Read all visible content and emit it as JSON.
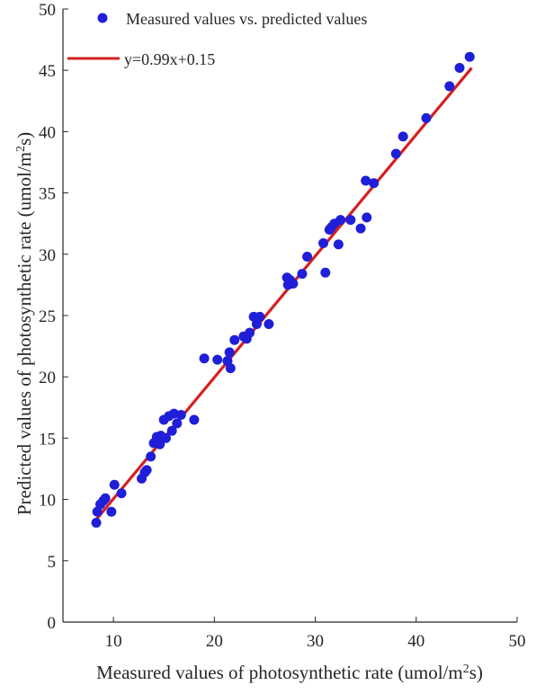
{
  "chart_data": {
    "type": "scatter",
    "xlim": [
      5,
      50
    ],
    "ylim": [
      0,
      50
    ],
    "x_ticks": [
      10,
      20,
      30,
      40,
      50
    ],
    "y_ticks": [
      0,
      5,
      10,
      15,
      20,
      25,
      30,
      35,
      40,
      45,
      50
    ],
    "xlabel_main": "Measured values of  photosynthetic rate (umol/m",
    "xlabel_sup": "2",
    "xlabel_end": "s)",
    "ylabel_main": "Predicted values of  photosynthetic rate (umol/m",
    "ylabel_sup": "2",
    "ylabel_end": "s)",
    "grid": false,
    "legend_placement": "top-left",
    "colors": {
      "points": "#1f1fd8",
      "fit_line": "#d42020",
      "axis": "#262626"
    },
    "series": [
      {
        "name": "Measured values vs. predicted values",
        "kind": "scatter",
        "x": [
          8.3,
          8.4,
          8.7,
          9.0,
          9.2,
          9.8,
          10.1,
          10.8,
          12.8,
          13.1,
          13.3,
          13.7,
          14.0,
          14.3,
          14.6,
          14.7,
          15.0,
          15.2,
          15.5,
          15.8,
          16.0,
          16.3,
          16.7,
          18.0,
          19.0,
          20.3,
          21.3,
          21.5,
          21.6,
          22.0,
          22.9,
          23.2,
          23.5,
          23.9,
          24.2,
          24.5,
          25.4,
          27.2,
          27.3,
          27.5,
          27.8,
          28.7,
          29.2,
          30.8,
          31.0,
          31.4,
          31.6,
          31.9,
          32.3,
          32.5,
          33.5,
          34.5,
          35.0,
          35.1,
          35.8,
          38.0,
          38.7,
          41.0,
          43.3,
          44.3,
          45.3
        ],
        "y": [
          8.1,
          9.0,
          9.6,
          9.9,
          10.1,
          9.0,
          11.2,
          10.5,
          11.7,
          12.2,
          12.4,
          13.5,
          14.6,
          15.1,
          14.5,
          15.2,
          16.5,
          15.0,
          16.8,
          15.6,
          17.0,
          16.2,
          16.9,
          16.5,
          21.5,
          21.4,
          21.3,
          22.0,
          20.7,
          23.0,
          23.3,
          23.1,
          23.6,
          24.9,
          24.3,
          24.9,
          24.3,
          28.1,
          27.5,
          27.9,
          27.6,
          28.4,
          29.8,
          30.9,
          28.5,
          32.0,
          32.2,
          32.5,
          30.8,
          32.8,
          32.8,
          32.1,
          36.0,
          33.0,
          35.8,
          38.2,
          39.6,
          41.1,
          43.7,
          45.2,
          46.1
        ]
      },
      {
        "name": "y=0.99x+0.15",
        "kind": "line",
        "slope": 0.99,
        "intercept": 0.15,
        "x": [
          8.0,
          45.5
        ]
      }
    ]
  }
}
